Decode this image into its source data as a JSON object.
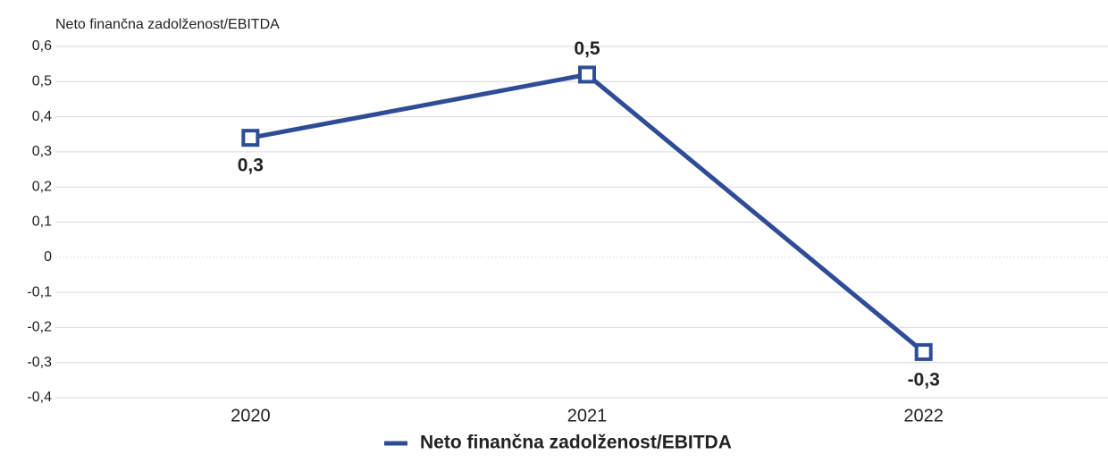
{
  "chart_data": {
    "type": "line",
    "title": "Neto finančna zadolženost/EBITDA",
    "categories": [
      "2020",
      "2021",
      "2022"
    ],
    "series": [
      {
        "name": "Neto finančna zadolženost/EBITDA",
        "color": "#2e4d96",
        "values": [
          0.34,
          0.52,
          -0.27
        ],
        "value_labels": [
          "0,3",
          "0,5",
          "-0,3"
        ]
      }
    ],
    "ylim": [
      -0.4,
      0.6
    ],
    "yticks": [
      {
        "value": 0.6,
        "label": "0,6"
      },
      {
        "value": 0.5,
        "label": "0,5"
      },
      {
        "value": 0.4,
        "label": "0,4"
      },
      {
        "value": 0.3,
        "label": "0,3"
      },
      {
        "value": 0.2,
        "label": "0,2"
      },
      {
        "value": 0.1,
        "label": "0,1"
      },
      0,
      {
        "value": -0.1,
        "label": "-0,1"
      },
      {
        "value": -0.2,
        "label": "-0,2"
      },
      {
        "value": -0.3,
        "label": "-0,3"
      },
      {
        "value": -0.4,
        "label": "-0,4"
      }
    ],
    "grid": true,
    "legend": "bottom"
  }
}
